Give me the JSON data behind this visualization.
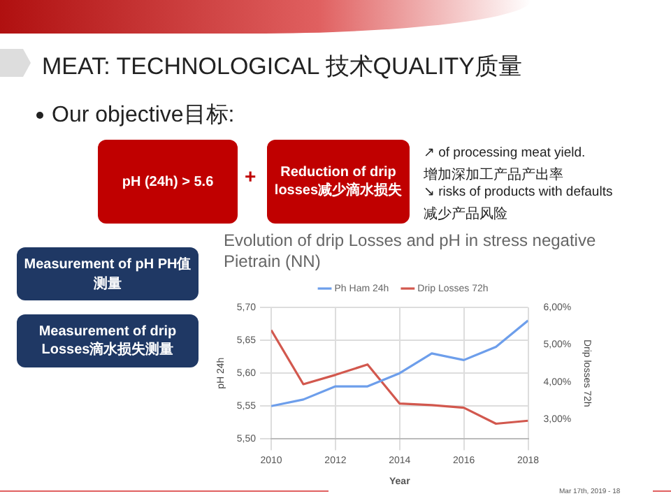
{
  "chart_data": {
    "type": "line",
    "title": "Evolution of drip Losses and pH in stress negative Pietrain (NN)",
    "xlabel": "Year",
    "ylabel": "pH 24h",
    "y2label": "Drip losses 72h",
    "x": [
      2010,
      2011,
      2012,
      2013,
      2014,
      2015,
      2016,
      2017,
      2018
    ],
    "series": [
      {
        "name": "Ph Ham 24h",
        "color": "#6d9eeb",
        "values": [
          5.55,
          5.56,
          5.58,
          5.58,
          5.6,
          5.63,
          5.62,
          5.64,
          5.68
        ]
      },
      {
        "name": "Drip Losses 72h",
        "color": "#d2584e",
        "axis": "y2",
        "values": [
          5.39,
          3.94,
          4.19,
          4.47,
          3.42,
          3.38,
          3.31,
          2.88,
          2.96
        ]
      }
    ],
    "xlim": [
      2010,
      2018
    ],
    "xticks": [
      2010,
      2012,
      2014,
      2016,
      2018
    ],
    "ylim": [
      5.5,
      5.7
    ],
    "yticks": [
      {
        "value": 5.5,
        "label": "5,50"
      },
      {
        "value": 5.55,
        "label": "5,55"
      },
      {
        "value": 5.6,
        "label": "5,60"
      },
      {
        "value": 5.65,
        "label": "5,65"
      },
      {
        "value": 5.7,
        "label": "5,70"
      }
    ],
    "y2lim": [
      2.47,
      6
    ],
    "y2ticks": [
      {
        "value": 3,
        "label": "3,00%"
      },
      {
        "value": 4,
        "label": "4,00%"
      },
      {
        "value": 5,
        "label": "5,00%"
      },
      {
        "value": 6,
        "label": "6,00%"
      }
    ],
    "grid": true,
    "legend": "top",
    "marker": "none",
    "line_style": "solid",
    "annotations": [
      "MEAT: TECHNOLOGICAL 技术QUALITY质量",
      "Our objective目标:",
      "pH (24h) > 5.6",
      "+",
      "Reduction of drip losses减少滴水损失",
      "↗ of processing meat yield.",
      "增加深加工产品产出率",
      "↘ risks of products with defaults",
      "减少产品风险",
      "Measurement of pH PH值测量",
      "Measurement of drip Losses滴水损失测量",
      "Mar 17th, 2019 - 18"
    ]
  }
}
